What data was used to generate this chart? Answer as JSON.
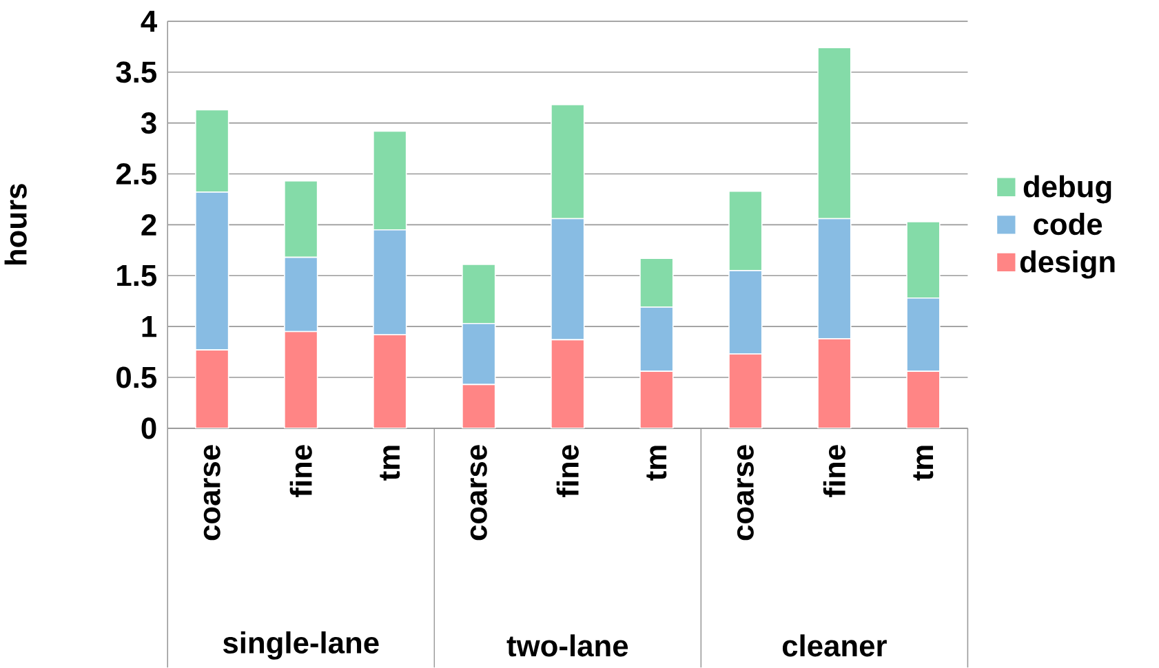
{
  "chart_data": {
    "type": "bar",
    "stacked": true,
    "ylabel": "hours",
    "categories": [
      "coarse",
      "fine",
      "tm",
      "coarse",
      "fine",
      "tm",
      "coarse",
      "fine",
      "tm"
    ],
    "series": [
      {
        "name": "design",
        "color": "#ff8585",
        "values": [
          0.77,
          0.95,
          0.92,
          0.43,
          0.87,
          0.56,
          0.73,
          0.88,
          0.56
        ]
      },
      {
        "name": "code",
        "color": "#88bce3",
        "values": [
          1.55,
          0.73,
          1.03,
          0.6,
          1.19,
          0.63,
          0.82,
          1.18,
          0.72
        ]
      },
      {
        "name": "debug",
        "color": "#84dba8",
        "values": [
          0.81,
          0.75,
          0.97,
          0.58,
          1.12,
          0.48,
          0.78,
          1.68,
          0.75
        ]
      }
    ],
    "annotations": [
      "single-lane",
      "two-lane",
      "cleaner"
    ],
    "ylim": [
      0,
      4
    ],
    "yticks": [
      0,
      0.5,
      1,
      1.5,
      2,
      2.5,
      3,
      3.5,
      4
    ],
    "grid": "y",
    "legend": "right"
  }
}
